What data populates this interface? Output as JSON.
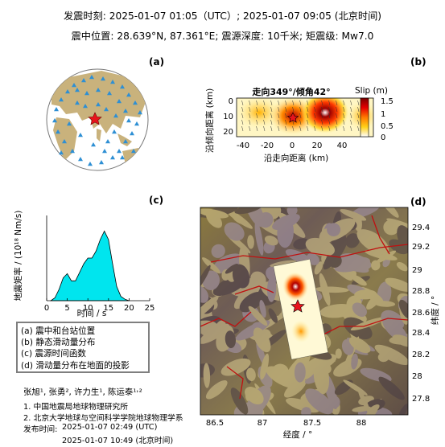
{
  "header": {
    "line1": "发震时刻: 2025-01-07 01:05（UTC）;   2025-01-07  09:05 (北京时间)",
    "line2": "震中位置: 28.639°N,  87.361°E;   震源深度: 10千米; 矩震级: Mw7.0"
  },
  "panels": {
    "a": {
      "label": "(a)"
    },
    "b": {
      "label": "(b)",
      "title": "走向349°/倾角42°",
      "ylabel": "沿倾向距离 (km)",
      "xlabel": "沿走向距离 (km)",
      "xticks": [
        "-40",
        "-20",
        "0",
        "20",
        "40"
      ],
      "yticks": [
        "0",
        "10",
        "20"
      ],
      "colorbar_title": "Slip (m)",
      "colorbar_ticks": [
        "1.5",
        "1",
        "0.5",
        "0"
      ]
    },
    "c": {
      "label": "(c)",
      "ylabel": "地震矩率 / (10¹⁸ Nm/s)",
      "xlabel": "时间 / s",
      "xticks": [
        "0",
        "5",
        "10",
        "15",
        "20",
        "25"
      ]
    },
    "d": {
      "label": "(d)",
      "xlabel": "经度 / °",
      "ylabel": "纬度 / °",
      "xticks": [
        "86.5",
        "87",
        "87.5",
        "88"
      ],
      "yticks": [
        "29.4",
        "29.2",
        "29",
        "28.8",
        "28.6",
        "28.4",
        "28.2",
        "28",
        "27.8"
      ]
    }
  },
  "legend": {
    "items": [
      "(a) 震中和台站位置",
      "(b) 静态滑动量分布",
      "(c) 震源时间函数",
      "(d) 滑动量分布在地面的投影"
    ]
  },
  "footer": {
    "authors": "张旭¹, 张勇², 许力生¹, 陈运泰¹˒²",
    "aff1": "1. 中国地震局地球物理研究所",
    "aff2": "2. 北京大学地球与空间科学学院地球物理学系",
    "release_label": "发布时间:",
    "release_utc": "2025-01-07  02:49 (UTC)",
    "release_bj": "2025-01-07  10:49 (北京时间)"
  },
  "chart_data": [
    {
      "type": "area",
      "panel": "c",
      "xlabel": "时间 / s",
      "ylabel": "地震矩率 / (10¹⁸ Nm/s)",
      "xlim": [
        0,
        25
      ],
      "ylim": [
        0,
        6
      ],
      "x": [
        1,
        2,
        3,
        4,
        5,
        6,
        7,
        8,
        9,
        10,
        11,
        12,
        13,
        14,
        15,
        16,
        17,
        18,
        19,
        20
      ],
      "y": [
        0,
        0.2,
        0.8,
        1.6,
        1.9,
        1.4,
        1.4,
        2.0,
        2.6,
        3.0,
        3.0,
        3.5,
        4.3,
        4.9,
        4.3,
        2.6,
        1.0,
        0.3,
        0.1,
        0
      ],
      "color": "#00e5ee"
    }
  ],
  "colors": {
    "area_fill": "#00e5ee",
    "epicenter": "#e8141c",
    "station": "#2e8fd4",
    "land": "#c9b27c",
    "frame": "#7f7f7f"
  }
}
